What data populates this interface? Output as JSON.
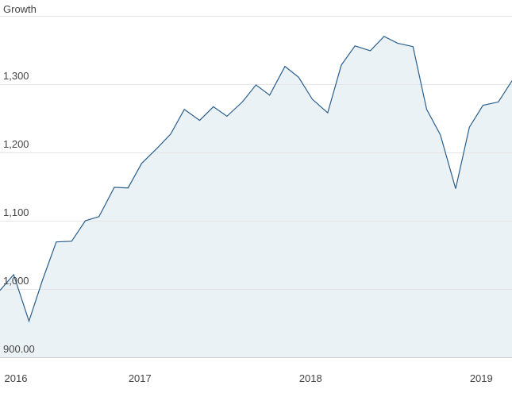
{
  "chart_data": {
    "type": "area",
    "title": "Growth",
    "x": [
      2016.18,
      2016.26,
      2016.35,
      2016.43,
      2016.51,
      2016.6,
      2016.68,
      2016.76,
      2016.85,
      2016.93,
      2017.01,
      2017.1,
      2017.18,
      2017.26,
      2017.35,
      2017.43,
      2017.51,
      2017.6,
      2017.68,
      2017.76,
      2017.85,
      2017.93,
      2018.01,
      2018.1,
      2018.18,
      2018.26,
      2018.35,
      2018.43,
      2018.51,
      2018.6,
      2018.68,
      2018.76,
      2018.85,
      2018.93,
      2019.01,
      2019.1,
      2019.18
    ],
    "values": [
      998,
      1021,
      953,
      1014,
      1069,
      1070,
      1100,
      1106,
      1149,
      1148,
      1184,
      1206,
      1227,
      1263,
      1247,
      1267,
      1253,
      1274,
      1299,
      1284,
      1326,
      1310,
      1278,
      1258,
      1328,
      1356,
      1349,
      1370,
      1360,
      1355,
      1263,
      1226,
      1147,
      1237,
      1269,
      1274,
      1305
    ],
    "color": "#2a5e8c",
    "fill": "#eaf2f5",
    "xlim": [
      2016.18,
      2019.18
    ],
    "xticks": [
      2016,
      2017,
      2018,
      2019
    ],
    "ylim": [
      900,
      1400
    ],
    "yticks": [
      {
        "value": 900,
        "label": "900.00"
      },
      {
        "value": 1000,
        "label": "1,000"
      },
      {
        "value": 1100,
        "label": "1,100"
      },
      {
        "value": 1200,
        "label": "1,200"
      },
      {
        "value": 1300,
        "label": "1,300"
      }
    ],
    "grid": true
  }
}
